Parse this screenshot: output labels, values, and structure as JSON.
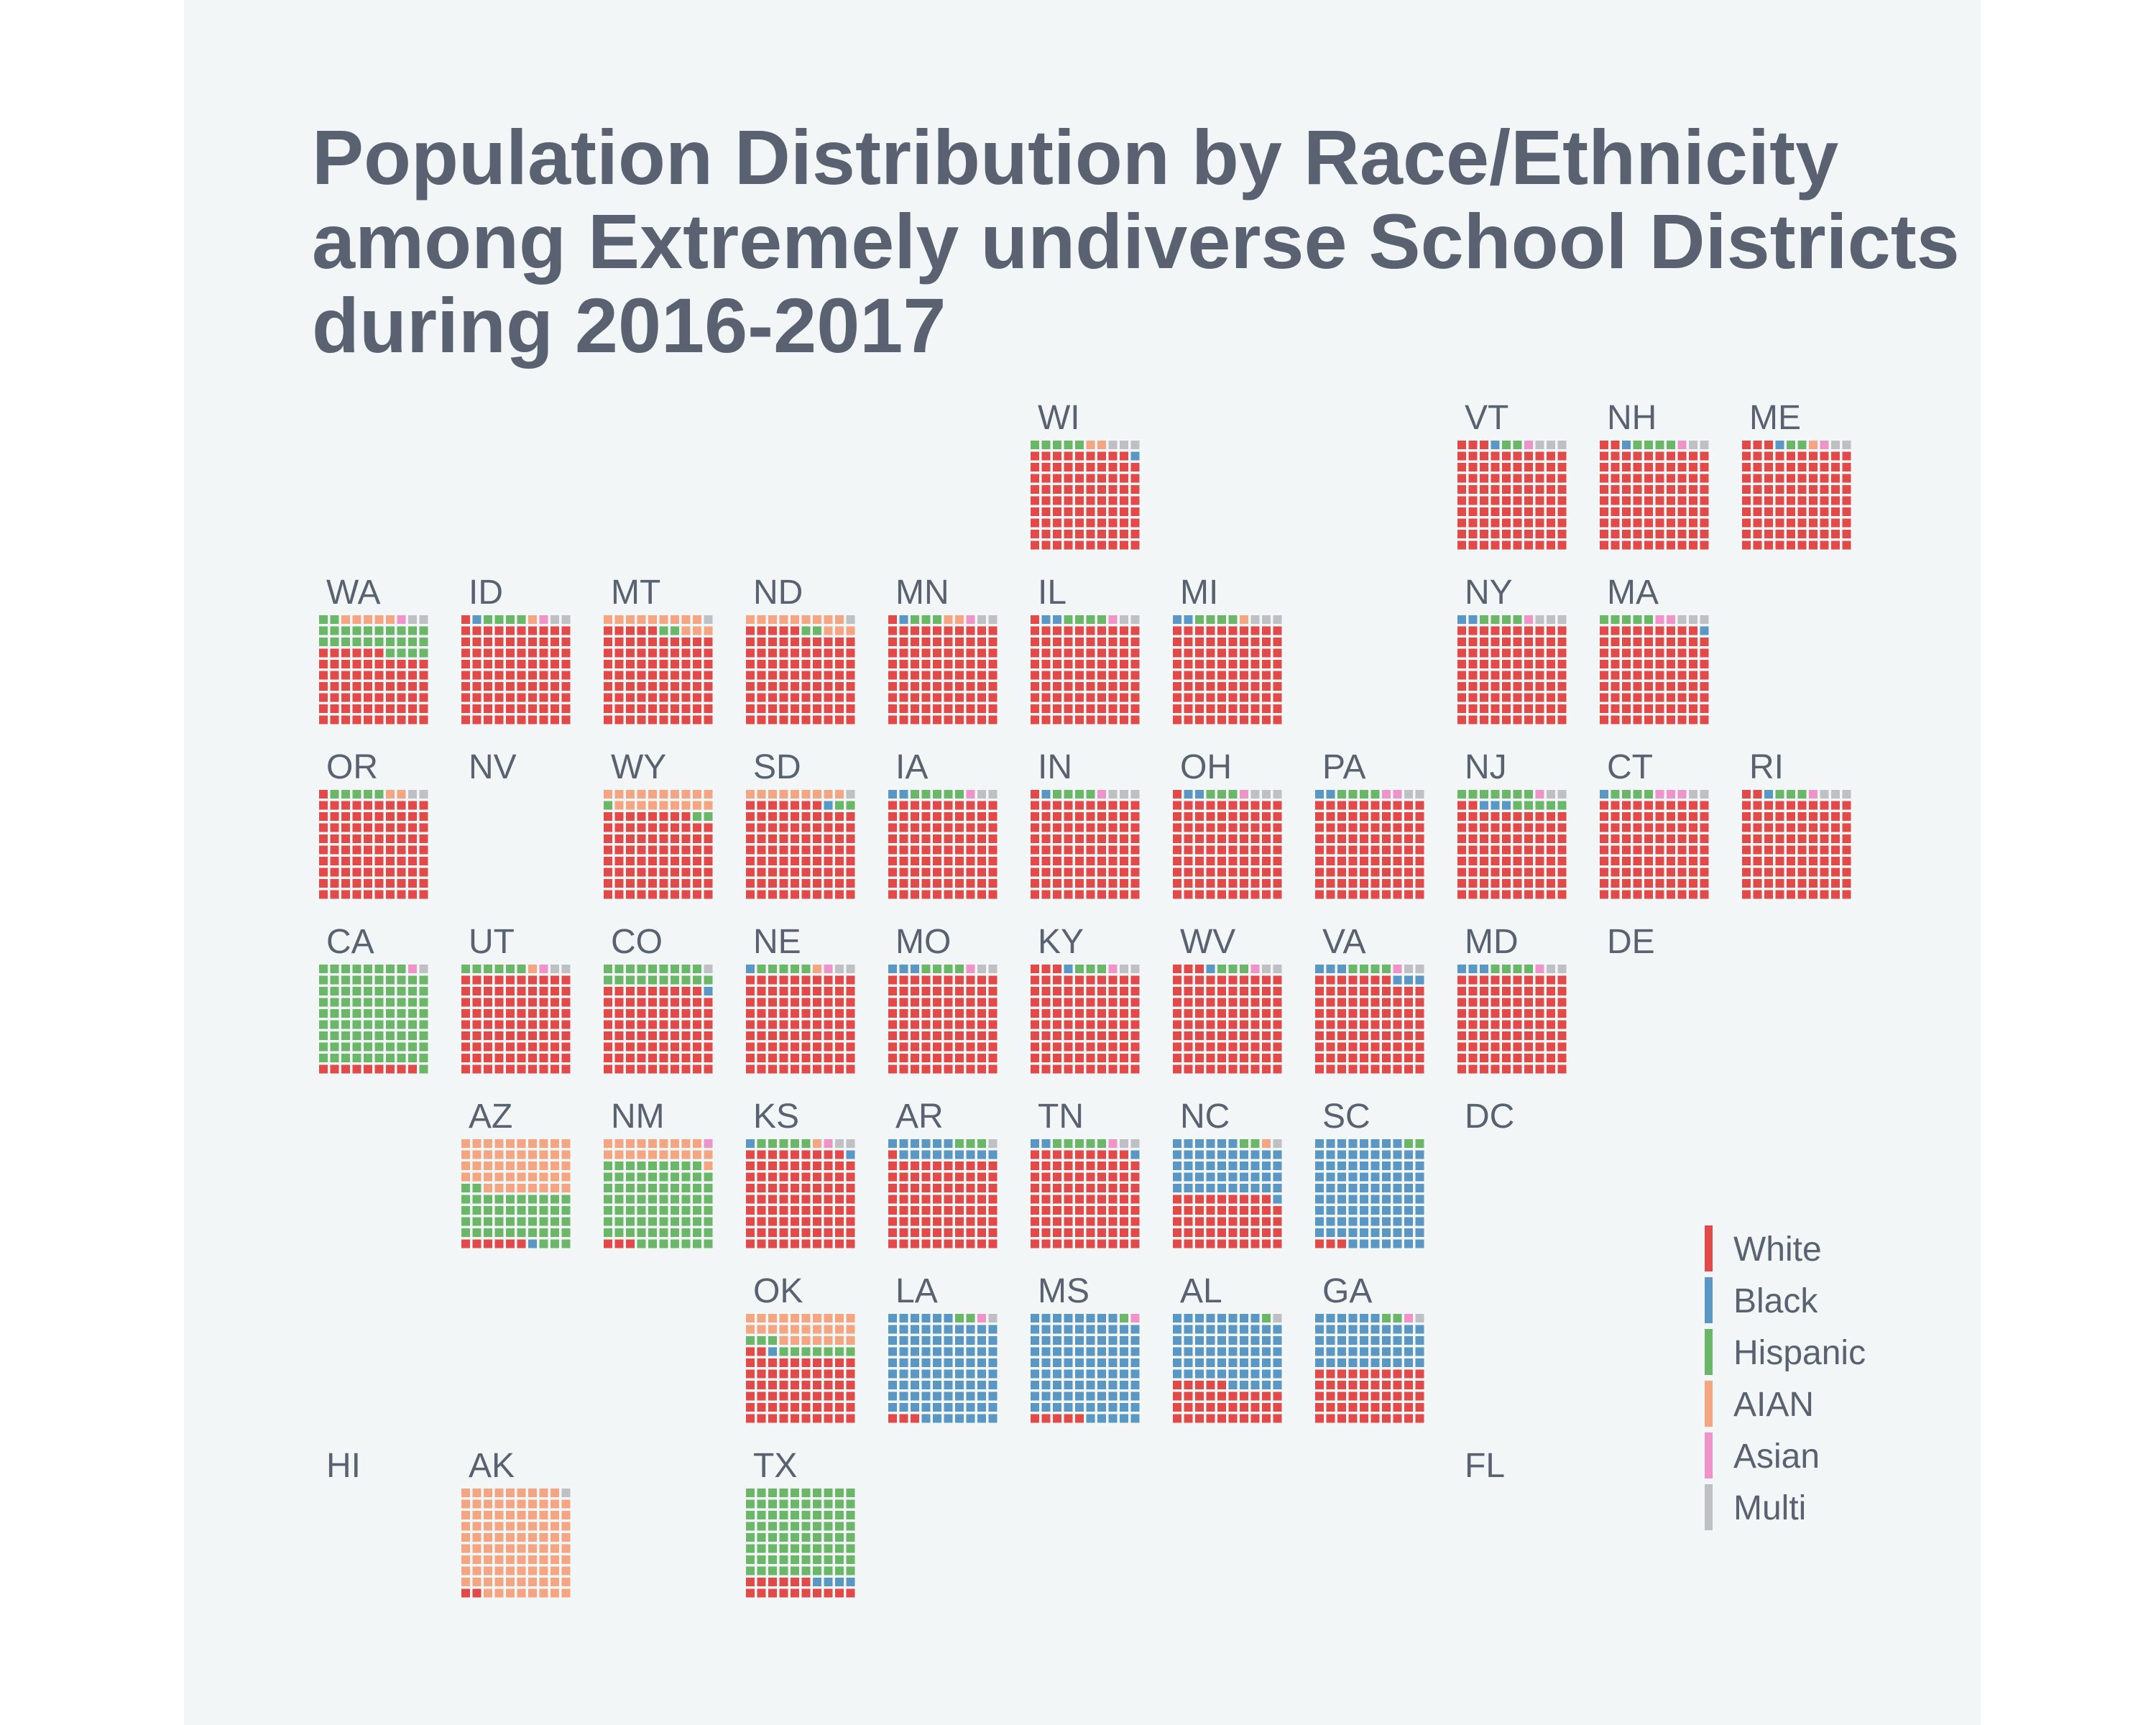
{
  "chart_data": {
    "type": "waffle",
    "title": [
      "Population Distribution by Race/Ethnicity",
      "among Extremely undiverse School Districts",
      "during 2016-2017"
    ],
    "unit": "percent",
    "categories": [
      "White",
      "Black",
      "Hispanic",
      "AIAN",
      "Asian",
      "Multi"
    ],
    "colors": {
      "White": "#e24a4a",
      "Black": "#5b97c4",
      "Hispanic": "#6ab768",
      "AIAN": "#f5a582",
      "Asian": "#ef93c9",
      "Multi": "#bfc0c3"
    },
    "legend_position": "right",
    "states": [
      {
        "abbr": "WI",
        "col": 5,
        "row": 0,
        "values": {
          "White": 89,
          "Black": 1,
          "Hispanic": 5,
          "AIAN": 2,
          "Asian": 0,
          "Multi": 3
        }
      },
      {
        "abbr": "VT",
        "col": 8,
        "row": 0,
        "values": {
          "White": 93,
          "Black": 1,
          "Hispanic": 2,
          "AIAN": 0,
          "Asian": 1,
          "Multi": 3
        }
      },
      {
        "abbr": "NH",
        "col": 9,
        "row": 0,
        "values": {
          "White": 92,
          "Black": 1,
          "Hispanic": 4,
          "AIAN": 0,
          "Asian": 1,
          "Multi": 2
        }
      },
      {
        "abbr": "ME",
        "col": 10,
        "row": 0,
        "values": {
          "White": 93,
          "Black": 1,
          "Hispanic": 2,
          "AIAN": 1,
          "Asian": 1,
          "Multi": 2
        }
      },
      {
        "abbr": "WA",
        "col": 0,
        "row": 1,
        "values": {
          "White": 66,
          "Black": 0,
          "Hispanic": 26,
          "AIAN": 5,
          "Asian": 1,
          "Multi": 2
        }
      },
      {
        "abbr": "ID",
        "col": 1,
        "row": 1,
        "values": {
          "White": 91,
          "Black": 1,
          "Hispanic": 4,
          "AIAN": 1,
          "Asian": 1,
          "Multi": 2
        }
      },
      {
        "abbr": "MT",
        "col": 2,
        "row": 1,
        "values": {
          "White": 85,
          "Black": 0,
          "Hispanic": 2,
          "AIAN": 12,
          "Asian": 0,
          "Multi": 1
        }
      },
      {
        "abbr": "ND",
        "col": 3,
        "row": 1,
        "values": {
          "White": 85,
          "Black": 0,
          "Hispanic": 2,
          "AIAN": 12,
          "Asian": 0,
          "Multi": 1
        }
      },
      {
        "abbr": "MN",
        "col": 4,
        "row": 1,
        "values": {
          "White": 91,
          "Black": 1,
          "Hispanic": 3,
          "AIAN": 2,
          "Asian": 1,
          "Multi": 2
        }
      },
      {
        "abbr": "IL",
        "col": 5,
        "row": 1,
        "values": {
          "White": 91,
          "Black": 2,
          "Hispanic": 4,
          "AIAN": 0,
          "Asian": 1,
          "Multi": 2
        }
      },
      {
        "abbr": "MI",
        "col": 6,
        "row": 1,
        "values": {
          "White": 90,
          "Black": 2,
          "Hispanic": 4,
          "AIAN": 1,
          "Asian": 0,
          "Multi": 3
        }
      },
      {
        "abbr": "NY",
        "col": 8,
        "row": 1,
        "values": {
          "White": 90,
          "Black": 2,
          "Hispanic": 4,
          "AIAN": 0,
          "Asian": 1,
          "Multi": 3
        }
      },
      {
        "abbr": "MA",
        "col": 9,
        "row": 1,
        "values": {
          "White": 89,
          "Black": 1,
          "Hispanic": 5,
          "AIAN": 0,
          "Asian": 2,
          "Multi": 3
        }
      },
      {
        "abbr": "OR",
        "col": 0,
        "row": 2,
        "values": {
          "White": 91,
          "Black": 0,
          "Hispanic": 5,
          "AIAN": 2,
          "Asian": 0,
          "Multi": 2
        }
      },
      {
        "abbr": "NV",
        "col": 1,
        "row": 2,
        "values": null
      },
      {
        "abbr": "WY",
        "col": 2,
        "row": 2,
        "values": {
          "White": 78,
          "Black": 0,
          "Hispanic": 3,
          "AIAN": 19,
          "Asian": 0,
          "Multi": 0
        }
      },
      {
        "abbr": "SD",
        "col": 3,
        "row": 2,
        "values": {
          "White": 87,
          "Black": 1,
          "Hispanic": 2,
          "AIAN": 9,
          "Asian": 0,
          "Multi": 1
        }
      },
      {
        "abbr": "IA",
        "col": 4,
        "row": 2,
        "values": {
          "White": 90,
          "Black": 2,
          "Hispanic": 5,
          "AIAN": 0,
          "Asian": 1,
          "Multi": 2
        }
      },
      {
        "abbr": "IN",
        "col": 5,
        "row": 2,
        "values": {
          "White": 91,
          "Black": 1,
          "Hispanic": 4,
          "AIAN": 0,
          "Asian": 1,
          "Multi": 3
        }
      },
      {
        "abbr": "OH",
        "col": 6,
        "row": 2,
        "values": {
          "White": 91,
          "Black": 2,
          "Hispanic": 3,
          "AIAN": 0,
          "Asian": 1,
          "Multi": 3
        }
      },
      {
        "abbr": "PA",
        "col": 7,
        "row": 2,
        "values": {
          "White": 90,
          "Black": 2,
          "Hispanic": 4,
          "AIAN": 0,
          "Asian": 2,
          "Multi": 2
        }
      },
      {
        "abbr": "NJ",
        "col": 8,
        "row": 2,
        "values": {
          "White": 82,
          "Black": 3,
          "Hispanic": 12,
          "AIAN": 0,
          "Asian": 1,
          "Multi": 2
        }
      },
      {
        "abbr": "CT",
        "col": 9,
        "row": 2,
        "values": {
          "White": 90,
          "Black": 1,
          "Hispanic": 4,
          "AIAN": 0,
          "Asian": 3,
          "Multi": 2
        }
      },
      {
        "abbr": "RI",
        "col": 10,
        "row": 2,
        "values": {
          "White": 92,
          "Black": 1,
          "Hispanic": 3,
          "AIAN": 0,
          "Asian": 1,
          "Multi": 3
        }
      },
      {
        "abbr": "CA",
        "col": 0,
        "row": 3,
        "values": {
          "White": 9,
          "Black": 0,
          "Hispanic": 89,
          "AIAN": 0,
          "Asian": 1,
          "Multi": 1
        }
      },
      {
        "abbr": "UT",
        "col": 1,
        "row": 3,
        "values": {
          "White": 90,
          "Black": 0,
          "Hispanic": 6,
          "AIAN": 1,
          "Asian": 1,
          "Multi": 2
        }
      },
      {
        "abbr": "CO",
        "col": 2,
        "row": 3,
        "values": {
          "White": 79,
          "Black": 1,
          "Hispanic": 19,
          "AIAN": 0,
          "Asian": 0,
          "Multi": 1
        }
      },
      {
        "abbr": "NE",
        "col": 3,
        "row": 3,
        "values": {
          "White": 90,
          "Black": 1,
          "Hispanic": 5,
          "AIAN": 1,
          "Asian": 1,
          "Multi": 2
        }
      },
      {
        "abbr": "MO",
        "col": 4,
        "row": 3,
        "values": {
          "White": 90,
          "Black": 3,
          "Hispanic": 4,
          "AIAN": 0,
          "Asian": 1,
          "Multi": 2
        }
      },
      {
        "abbr": "KY",
        "col": 5,
        "row": 3,
        "values": {
          "White": 93,
          "Black": 1,
          "Hispanic": 3,
          "AIAN": 0,
          "Asian": 1,
          "Multi": 2
        }
      },
      {
        "abbr": "WV",
        "col": 6,
        "row": 3,
        "values": {
          "White": 93,
          "Black": 1,
          "Hispanic": 3,
          "AIAN": 0,
          "Asian": 1,
          "Multi": 2
        }
      },
      {
        "abbr": "VA",
        "col": 7,
        "row": 3,
        "values": {
          "White": 87,
          "Black": 6,
          "Hispanic": 4,
          "AIAN": 0,
          "Asian": 1,
          "Multi": 2
        }
      },
      {
        "abbr": "MD",
        "col": 8,
        "row": 3,
        "values": {
          "White": 90,
          "Black": 3,
          "Hispanic": 4,
          "AIAN": 0,
          "Asian": 1,
          "Multi": 2
        }
      },
      {
        "abbr": "DE",
        "col": 9,
        "row": 3,
        "values": null
      },
      {
        "abbr": "AZ",
        "col": 1,
        "row": 4,
        "values": {
          "White": 6,
          "Black": 1,
          "Hispanic": 45,
          "AIAN": 48,
          "Asian": 0,
          "Multi": 0
        }
      },
      {
        "abbr": "NM",
        "col": 2,
        "row": 4,
        "values": {
          "White": 3,
          "Black": 0,
          "Hispanic": 76,
          "AIAN": 20,
          "Asian": 1,
          "Multi": 0
        }
      },
      {
        "abbr": "KS",
        "col": 3,
        "row": 4,
        "values": {
          "White": 89,
          "Black": 2,
          "Hispanic": 5,
          "AIAN": 1,
          "Asian": 1,
          "Multi": 2
        }
      },
      {
        "abbr": "AR",
        "col": 4,
        "row": 4,
        "values": {
          "White": 81,
          "Black": 15,
          "Hispanic": 3,
          "AIAN": 0,
          "Asian": 0,
          "Multi": 1
        }
      },
      {
        "abbr": "TN",
        "col": 5,
        "row": 4,
        "values": {
          "White": 89,
          "Black": 3,
          "Hispanic": 5,
          "AIAN": 0,
          "Asian": 1,
          "Multi": 2
        }
      },
      {
        "abbr": "NC",
        "col": 6,
        "row": 4,
        "values": {
          "White": 49,
          "Black": 47,
          "Hispanic": 2,
          "AIAN": 1,
          "Asian": 0,
          "Multi": 1
        }
      },
      {
        "abbr": "SC",
        "col": 7,
        "row": 4,
        "values": {
          "White": 3,
          "Black": 95,
          "Hispanic": 2,
          "AIAN": 0,
          "Asian": 0,
          "Multi": 0
        }
      },
      {
        "abbr": "DC",
        "col": 8,
        "row": 4,
        "values": null
      },
      {
        "abbr": "OK",
        "col": 3,
        "row": 5,
        "values": {
          "White": 62,
          "Black": 1,
          "Hispanic": 10,
          "AIAN": 27,
          "Asian": 0,
          "Multi": 0
        }
      },
      {
        "abbr": "LA",
        "col": 4,
        "row": 5,
        "values": {
          "White": 3,
          "Black": 93,
          "Hispanic": 2,
          "AIAN": 0,
          "Asian": 1,
          "Multi": 1
        }
      },
      {
        "abbr": "MS",
        "col": 5,
        "row": 5,
        "values": {
          "White": 5,
          "Black": 93,
          "Hispanic": 1,
          "AIAN": 0,
          "Asian": 1,
          "Multi": 0
        }
      },
      {
        "abbr": "AL",
        "col": 6,
        "row": 5,
        "values": {
          "White": 35,
          "Black": 63,
          "Hispanic": 1,
          "AIAN": 0,
          "Asian": 0,
          "Multi": 1
        }
      },
      {
        "abbr": "GA",
        "col": 7,
        "row": 5,
        "values": {
          "White": 50,
          "Black": 46,
          "Hispanic": 2,
          "AIAN": 0,
          "Asian": 1,
          "Multi": 1
        }
      },
      {
        "abbr": "HI",
        "col": 0,
        "row": 6,
        "values": null
      },
      {
        "abbr": "AK",
        "col": 1,
        "row": 6,
        "values": {
          "White": 2,
          "Black": 0,
          "Hispanic": 0,
          "AIAN": 97,
          "Asian": 0,
          "Multi": 1
        }
      },
      {
        "abbr": "TX",
        "col": 3,
        "row": 6,
        "values": {
          "White": 16,
          "Black": 4,
          "Hispanic": 80,
          "AIAN": 0,
          "Asian": 0,
          "Multi": 0
        }
      },
      {
        "abbr": "FL",
        "col": 8,
        "row": 6,
        "values": null
      }
    ]
  }
}
